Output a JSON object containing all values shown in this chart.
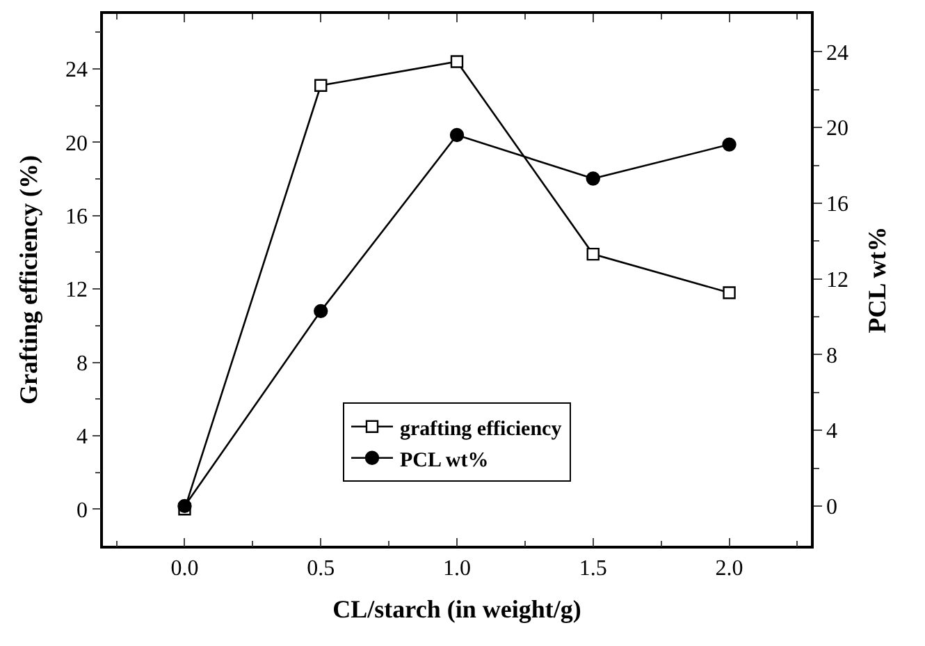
{
  "chart_data": {
    "type": "line",
    "xlabel": "CL/starch (in weight/g)",
    "ylabel": "Grafting efficiency (%)",
    "y2label": "PCL wt%",
    "x": [
      0.0,
      0.5,
      1.0,
      1.5,
      2.0
    ],
    "series": [
      {
        "name": "grafting efficiency",
        "color": "#000000",
        "marker": "square",
        "values": [
          0,
          23.1,
          24.4,
          13.9,
          11.8
        ]
      },
      {
        "name": "PCL wt%",
        "color": "#000000",
        "marker": "circle",
        "axis": "y2",
        "values": [
          0,
          10.3,
          19.6,
          17.3,
          19.1
        ]
      }
    ],
    "xlim": [
      -0.3,
      2.3
    ],
    "xticks": [
      {
        "value": -0.25,
        "label": null
      },
      {
        "value": 0,
        "label": "0.0"
      },
      {
        "value": 0.25,
        "label": null
      },
      {
        "value": 0.5,
        "label": "0.5"
      },
      {
        "value": 0.75,
        "label": null
      },
      {
        "value": 1,
        "label": "1.0"
      },
      {
        "value": 1.25,
        "label": null
      },
      {
        "value": 1.5,
        "label": "1.5"
      },
      {
        "value": 1.75,
        "label": null
      },
      {
        "value": 2,
        "label": "2.0"
      },
      {
        "value": 2.25,
        "label": null
      }
    ],
    "ylim": [
      -2,
      27
    ],
    "yticks": [
      0,
      {
        "value": 2,
        "label": null
      },
      4,
      {
        "value": 6,
        "label": null
      },
      8,
      {
        "value": 10,
        "label": null
      },
      12,
      {
        "value": 14,
        "label": null
      },
      16,
      {
        "value": 18,
        "label": null
      },
      20,
      {
        "value": 22,
        "label": null
      },
      24,
      {
        "value": 26,
        "label": null
      }
    ],
    "y2lim": [
      -2.1,
      26
    ],
    "y2ticks": [
      0,
      {
        "value": 2,
        "label": null
      },
      4,
      {
        "value": 6,
        "label": null
      },
      8,
      {
        "value": 10,
        "label": null
      },
      12,
      {
        "value": 14,
        "label": null
      },
      16,
      {
        "value": 18,
        "label": null
      },
      20,
      {
        "value": 22,
        "label": null
      },
      24
    ],
    "legend": "bottom",
    "line_style": "solid"
  }
}
